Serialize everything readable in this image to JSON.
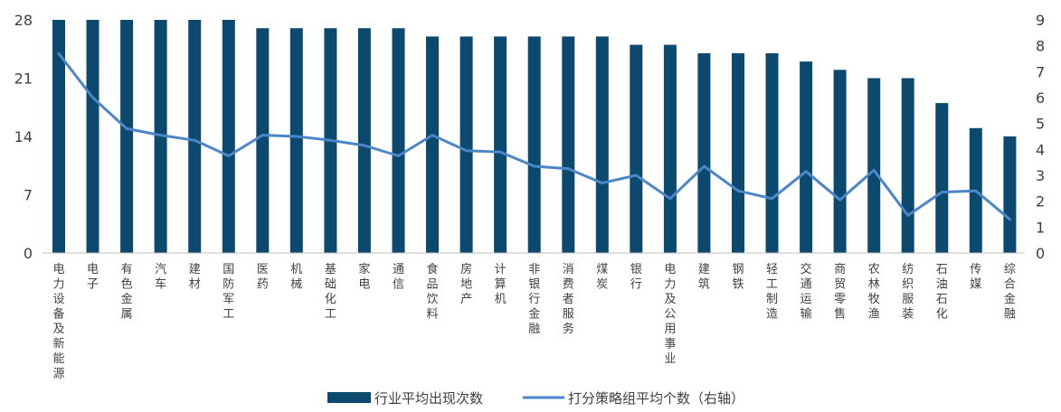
{
  "chart_data": {
    "type": "bar",
    "categories": [
      "电力设备及新能源",
      "电子",
      "有色金属",
      "汽车",
      "建材",
      "国防军工",
      "医药",
      "机械",
      "基础化工",
      "家电",
      "通信",
      "食品饮料",
      "房地产",
      "计算机",
      "非银行金融",
      "消费者服务",
      "煤炭",
      "银行",
      "电力及公用事业",
      "建筑",
      "钢铁",
      "轻工制造",
      "交通运输",
      "商贸零售",
      "农林牧渔",
      "纺织服装",
      "石油石化",
      "传媒",
      "综合金融"
    ],
    "series": [
      {
        "name": "行业平均出现次数",
        "type": "bar",
        "axis": "left",
        "color": "#0b4a6e",
        "values": [
          28,
          28,
          28,
          28,
          28,
          28,
          27,
          27,
          27,
          27,
          27,
          26,
          26,
          26,
          26,
          26,
          26,
          25,
          25,
          24,
          24,
          24,
          23,
          22,
          21,
          21,
          18,
          15,
          14
        ]
      },
      {
        "name": "打分策略组平均个数（右轴）",
        "type": "line",
        "axis": "right",
        "color": "#4a86c8",
        "values": [
          7.7,
          6.0,
          4.8,
          4.55,
          4.35,
          3.75,
          4.55,
          4.5,
          4.35,
          4.15,
          3.75,
          4.55,
          3.95,
          3.9,
          3.35,
          3.25,
          2.7,
          3.0,
          2.1,
          3.35,
          2.4,
          2.1,
          3.15,
          2.05,
          3.2,
          1.45,
          2.35,
          2.4,
          1.3
        ]
      }
    ],
    "ylim_left": [
      0,
      28
    ],
    "yticks_left": [
      0,
      7,
      14,
      21,
      28
    ],
    "ylim_right": [
      0,
      9
    ],
    "yticks_right": [
      0,
      1,
      2,
      3,
      4,
      5,
      6,
      7,
      8,
      9
    ],
    "grid": false,
    "legend_position": "bottom-center"
  }
}
